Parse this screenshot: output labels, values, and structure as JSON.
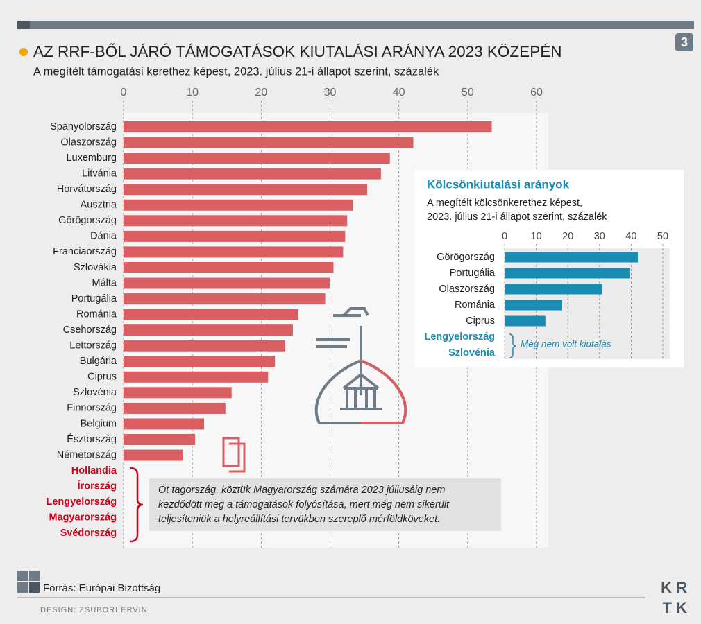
{
  "header": {
    "title": "AZ RRF-BŐL JÁRÓ TÁMOGATÁSOK KIUTALÁSI ARÁNYA 2023 KÖZEPÉN",
    "subtitle": "A megítélt támogatási kerethez képest, 2023. július 21-i állapot szerint, százalék",
    "badge": "3"
  },
  "chart_data": [
    {
      "type": "bar",
      "orientation": "horizontal",
      "categories": [
        "Spanyolország",
        "Olaszország",
        "Luxemburg",
        "Litvánia",
        "Horvátország",
        "Ausztria",
        "Görögország",
        "Dánia",
        "Franciaország",
        "Szlovákia",
        "Málta",
        "Portugália",
        "Románia",
        "Csehország",
        "Lettország",
        "Bulgária",
        "Ciprus",
        "Szlovénia",
        "Finnország",
        "Belgium",
        "Észtország",
        "Németország",
        "Hollandia",
        "Írország",
        "Lengyelország",
        "Magyarország",
        "Svédország"
      ],
      "values": [
        53.5,
        42.1,
        38.7,
        37.4,
        35.4,
        33.3,
        32.5,
        32.2,
        31.9,
        30.5,
        30.0,
        29.3,
        25.4,
        24.6,
        23.5,
        22.0,
        21.0,
        15.7,
        14.8,
        11.7,
        10.4,
        8.6,
        null,
        null,
        null,
        null,
        null
      ],
      "color": "#d95f63",
      "missing_label_color": "#d0021b",
      "xlim": [
        0,
        60
      ],
      "xticks": [
        0,
        10,
        20,
        30,
        40,
        50,
        60
      ],
      "grid": true,
      "annotation": [
        "Öt tagország, köztük Magyarország számára 2023 júliusáig nem",
        "kezdődött meg a támogatások folyósítása, mert még nem sikerült",
        "teljesíteniük a helyreállítási tervükben szereplő mérföldköveket."
      ]
    },
    {
      "type": "bar",
      "orientation": "horizontal",
      "title": "Kölcsönkiutalási arányok",
      "subtitle": [
        "A megítélt kölcsönkerethez képest,",
        "2023. július 21-i állapot szerint, százalék"
      ],
      "categories": [
        "Görögország",
        "Portugália",
        "Olaszország",
        "Románia",
        "Ciprus",
        "Lengyelország",
        "Szlovénia"
      ],
      "values": [
        42.1,
        39.7,
        30.9,
        18.2,
        12.9,
        null,
        null
      ],
      "color": "#1b8db4",
      "missing_label_color": "#1b8db4",
      "xlim": [
        0,
        50
      ],
      "xticks": [
        0,
        10,
        20,
        30,
        40,
        50
      ],
      "grid": true,
      "annotation": [
        "Még nem volt kiutalás"
      ]
    }
  ],
  "footer": {
    "source": "Forrás: Európai Bizottság",
    "design": "DESIGN: ZSUBORI ERVIN",
    "logo": [
      "K R",
      "T K"
    ]
  }
}
